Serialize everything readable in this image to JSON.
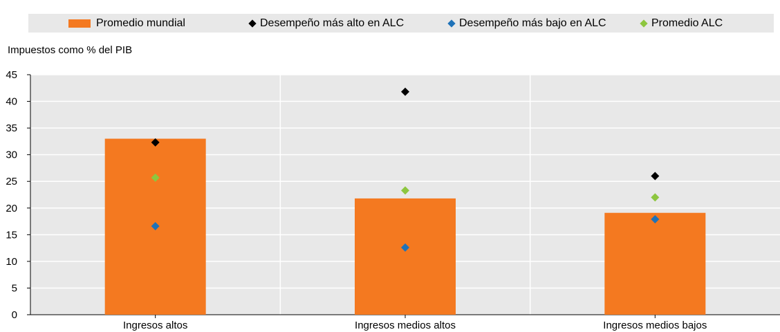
{
  "title_partial": "",
  "legend": {
    "bar": "Promedio mundial",
    "high": "Desempeño más alto en ALC",
    "low": "Desempeño más bajo en ALC",
    "avg": "Promedio ALC"
  },
  "colors": {
    "bar": "#f47920",
    "high": "#000000",
    "low": "#1f72b8",
    "avg": "#8dc63f"
  },
  "chart_data": {
    "type": "bar",
    "ylabel": "Impuestos como %  del PIB",
    "ylim": [
      0,
      45
    ],
    "yticks": [
      0,
      5,
      10,
      15,
      20,
      25,
      30,
      35,
      40,
      45
    ],
    "categories": [
      "Ingresos altos",
      "Ingresos medios altos",
      "Ingresos medios bajos"
    ],
    "series": [
      {
        "name": "Promedio mundial",
        "kind": "bar",
        "values": [
          33.0,
          21.8,
          19.1
        ]
      },
      {
        "name": "Desempeño más alto en ALC",
        "kind": "point",
        "values": [
          32.3,
          41.8,
          26.0
        ]
      },
      {
        "name": "Desempeño más bajo en ALC",
        "kind": "point",
        "values": [
          16.6,
          12.6,
          17.9
        ]
      },
      {
        "name": "Promedio ALC",
        "kind": "point",
        "values": [
          25.7,
          23.3,
          22.0
        ]
      }
    ],
    "grid": true,
    "legend_position": "top"
  }
}
